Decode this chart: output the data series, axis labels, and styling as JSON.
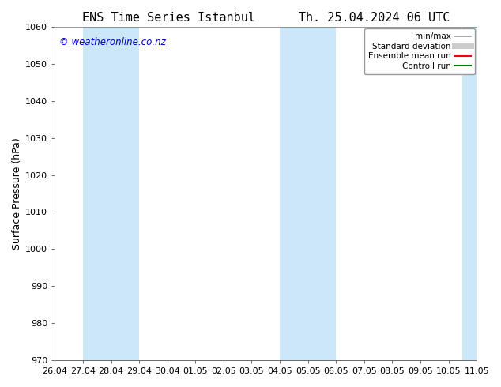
{
  "title_left": "ENS Time Series Istanbul",
  "title_right": "Th. 25.04.2024 06 UTC",
  "ylabel": "Surface Pressure (hPa)",
  "ylim": [
    970,
    1060
  ],
  "yticks": [
    970,
    980,
    990,
    1000,
    1010,
    1020,
    1030,
    1040,
    1050,
    1060
  ],
  "xtick_labels": [
    "26.04",
    "27.04",
    "28.04",
    "29.04",
    "30.04",
    "01.05",
    "02.05",
    "03.05",
    "04.05",
    "05.05",
    "06.05",
    "07.05",
    "08.05",
    "09.05",
    "10.05",
    "11.05"
  ],
  "x_values": [
    0,
    1,
    2,
    3,
    4,
    5,
    6,
    7,
    8,
    9,
    10,
    11,
    12,
    13,
    14,
    15
  ],
  "xlim": [
    0,
    15
  ],
  "shaded_regions": [
    {
      "x_start": 1,
      "x_end": 3,
      "color": "#cce8f8"
    },
    {
      "x_start": 8,
      "x_end": 10,
      "color": "#cce8f8"
    },
    {
      "x_start": 14.5,
      "x_end": 15,
      "color": "#cce8f8"
    }
  ],
  "watermark": "© weatheronline.co.nz",
  "watermark_color": "#0000cc",
  "background_color": "#ffffff",
  "plot_bg_color": "#ffffff",
  "legend_items": [
    {
      "label": "min/max",
      "color": "#999999",
      "lw": 1.2,
      "style": "solid"
    },
    {
      "label": "Standard deviation",
      "color": "#cccccc",
      "lw": 5,
      "style": "solid"
    },
    {
      "label": "Ensemble mean run",
      "color": "#ff0000",
      "lw": 1.5,
      "style": "solid"
    },
    {
      "label": "Controll run",
      "color": "#008000",
      "lw": 1.5,
      "style": "solid"
    }
  ],
  "title_fontsize": 11,
  "axis_label_fontsize": 9,
  "tick_fontsize": 8,
  "legend_fontsize": 7.5,
  "watermark_fontsize": 8.5
}
